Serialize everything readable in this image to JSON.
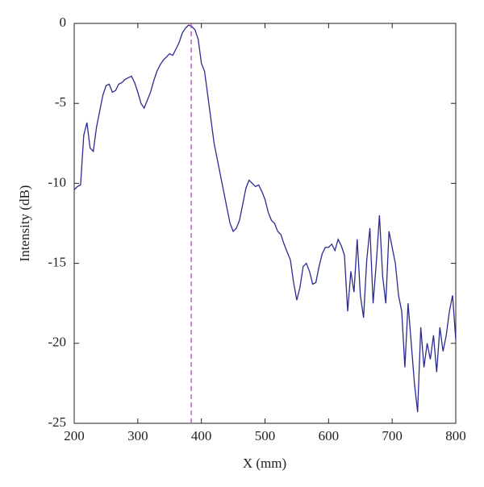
{
  "chart_data": {
    "type": "line",
    "xlabel": "X (mm)",
    "ylabel": "Intensity (dB)",
    "xlim": [
      200,
      800
    ],
    "ylim": [
      -25,
      0
    ],
    "xticks": [
      200,
      300,
      400,
      500,
      600,
      700,
      800
    ],
    "yticks": [
      -25,
      -20,
      -15,
      -10,
      -5,
      0
    ],
    "x": [
      200,
      205,
      210,
      215,
      220,
      225,
      230,
      235,
      240,
      245,
      250,
      255,
      260,
      265,
      270,
      275,
      280,
      285,
      290,
      295,
      300,
      305,
      310,
      315,
      320,
      325,
      330,
      335,
      340,
      345,
      350,
      355,
      360,
      365,
      370,
      375,
      380,
      385,
      390,
      395,
      400,
      405,
      410,
      415,
      420,
      425,
      430,
      435,
      440,
      445,
      450,
      455,
      460,
      465,
      470,
      475,
      480,
      485,
      490,
      495,
      500,
      505,
      510,
      515,
      520,
      525,
      530,
      535,
      540,
      545,
      550,
      555,
      560,
      565,
      570,
      575,
      580,
      585,
      590,
      595,
      600,
      605,
      610,
      615,
      620,
      625,
      630,
      635,
      640,
      645,
      650,
      655,
      660,
      665,
      670,
      675,
      680,
      685,
      690,
      695,
      700,
      705,
      710,
      715,
      720,
      725,
      730,
      735,
      740,
      745,
      750,
      755,
      760,
      765,
      770,
      775,
      780,
      785,
      790,
      795,
      800
    ],
    "series": [
      {
        "color": "#2b2b8f",
        "values": [
          -10.4,
          -10.2,
          -10.1,
          -7,
          -6.2,
          -7.8,
          -8,
          -6.5,
          -5.5,
          -4.5,
          -3.9,
          -3.8,
          -4.3,
          -4.2,
          -3.8,
          -3.7,
          -3.5,
          -3.4,
          -3.3,
          -3.7,
          -4.3,
          -5,
          -5.3,
          -4.8,
          -4.3,
          -3.6,
          -3,
          -2.6,
          -2.3,
          -2.1,
          -1.9,
          -2,
          -1.6,
          -1.2,
          -0.6,
          -0.3,
          -0.1,
          -0.2,
          -0.4,
          -1,
          -2.5,
          -3,
          -4.5,
          -6,
          -7.5,
          -8.5,
          -9.5,
          -10.5,
          -11.5,
          -12.5,
          -13,
          -12.8,
          -12.3,
          -11.3,
          -10.3,
          -9.8,
          -10,
          -10.2,
          -10.1,
          -10.5,
          -11,
          -11.8,
          -12.3,
          -12.5,
          -13,
          -13.2,
          -13.8,
          -14.3,
          -14.8,
          -16.2,
          -17.3,
          -16.5,
          -15.2,
          -15,
          -15.5,
          -16.3,
          -16.2,
          -15.2,
          -14.4,
          -14,
          -14,
          -13.8,
          -14.2,
          -13.5,
          -13.9,
          -14.5,
          -18,
          -15.5,
          -16.8,
          -13.5,
          -17,
          -18.4,
          -14.8,
          -12.8,
          -17.5,
          -15,
          -12,
          -15.8,
          -17.5,
          -13,
          -14,
          -15,
          -17,
          -18,
          -21.5,
          -17.5,
          -20,
          -22.5,
          -24.3,
          -19,
          -21.5,
          -20,
          -21,
          -19.5,
          -21.8,
          -19,
          -20.5,
          -19.5,
          -18,
          -17,
          -19.8
        ]
      }
    ],
    "reference_line": {
      "x": 384,
      "color": "#c040c0"
    }
  }
}
